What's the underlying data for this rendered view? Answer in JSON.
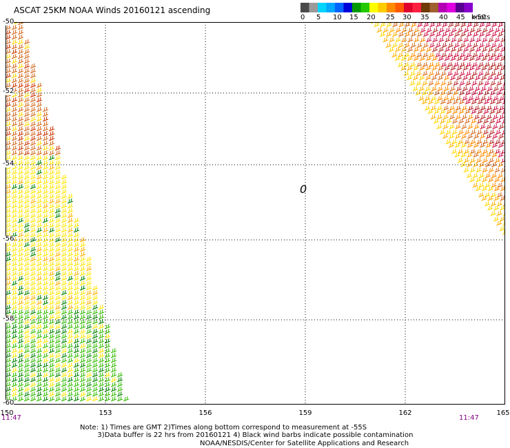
{
  "header": {
    "title": "ASCAT 25KM NOAA Winds 20160121 ascending"
  },
  "legend": {
    "colors": [
      "#4a4a4a",
      "#9a9a9a",
      "#00d4ff",
      "#00a8ff",
      "#0064ff",
      "#0000d8",
      "#009800",
      "#24c800",
      "#ffff00",
      "#ffcc00",
      "#ff8c00",
      "#ff5a00",
      "#e0002e",
      "#ff2040",
      "#6e3a08",
      "#a06030",
      "#b400b4",
      "#e000e0",
      "#5a0090",
      "#8800cc"
    ],
    "labels": [
      "0",
      "5",
      "10",
      "15",
      "20",
      "25",
      "30",
      "35",
      "40",
      "45",
      ">50"
    ],
    "units": "knots"
  },
  "map": {
    "lat_labels": [
      "-50",
      "-52",
      "-54",
      "-56",
      "-58",
      "-60"
    ],
    "lon_labels": [
      "150",
      "153",
      "156",
      "159",
      "162",
      "165"
    ],
    "pass_times": [
      "11:47",
      "11:47"
    ],
    "stray_mark": "0"
  },
  "footer": {
    "note_line1": "Note: 1) Times are GMT 2)Times along bottom correspond to measurement at -55S",
    "note_line2": "        3)Data buffer is 22 hrs from 20160121 4) Black wind barbs indicate possible contamination",
    "credit": "NOAA/NESDIS/Center for Satellite Applications and Research"
  }
}
